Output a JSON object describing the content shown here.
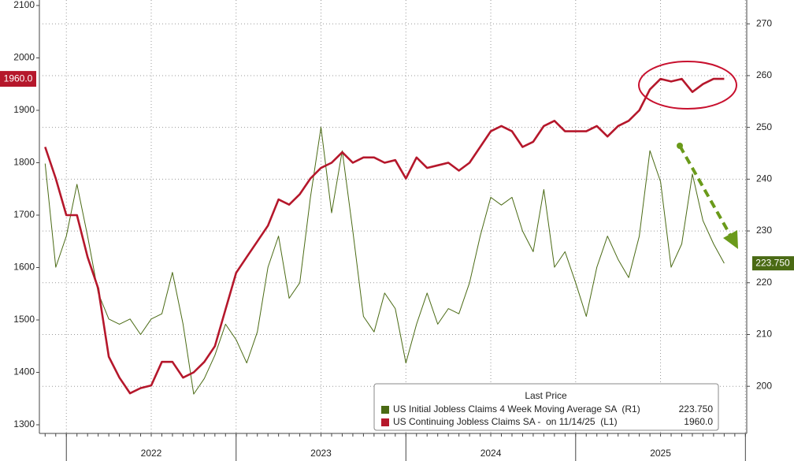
{
  "chart_data": {
    "type": "line",
    "categories": [
      null,
      null,
      null,
      null,
      null,
      null,
      null,
      null,
      null,
      null,
      "2022",
      null,
      null,
      null,
      null,
      null,
      null,
      null,
      null,
      null,
      null,
      null,
      null,
      null,
      null,
      null,
      "2023",
      null,
      null,
      null,
      null,
      null,
      null,
      null,
      null,
      null,
      null,
      null,
      null,
      null,
      null,
      null,
      "2024",
      null,
      null,
      null,
      null,
      null,
      null,
      null,
      null,
      null,
      null,
      null,
      null,
      null,
      null,
      null,
      "2025",
      null,
      null,
      null,
      null,
      null,
      null
    ],
    "series": [
      {
        "name": "US Initial Jobless Claims 4 Week Moving Average SA  (R1)",
        "color": "#4a6a14",
        "axis": "y2",
        "values": [
          243,
          223,
          229,
          239,
          229,
          218,
          213,
          212,
          213,
          210,
          213,
          214,
          222,
          212,
          198.5,
          201.5,
          206,
          212,
          209,
          204.5,
          210.5,
          223,
          229,
          217,
          220,
          236.5,
          250,
          233.5,
          245.5,
          230,
          213.5,
          210.5,
          218,
          215,
          204.5,
          212,
          218,
          212,
          215,
          214,
          220,
          229,
          236.5,
          235,
          236.5,
          230,
          226,
          238,
          223,
          226,
          220,
          213.5,
          223,
          229,
          224.5,
          221,
          229,
          245.5,
          239.5,
          223,
          227.5,
          241,
          232,
          227.5,
          223.75
        ],
        "value_labels": [
          null,
          null,
          null,
          null,
          null,
          null,
          null,
          null,
          null,
          null,
          null,
          null,
          null,
          null,
          null,
          null,
          null,
          null,
          null,
          null,
          null,
          null,
          null,
          null,
          null,
          null,
          null,
          null,
          null,
          null,
          null,
          null,
          null,
          null,
          null,
          null,
          null,
          null,
          null,
          null,
          null,
          null,
          null,
          null,
          null,
          null,
          null,
          null,
          null,
          null,
          null,
          null,
          null,
          null,
          null,
          null,
          null,
          null,
          null,
          null,
          null,
          null,
          null,
          null,
          "223.750"
        ]
      },
      {
        "name": "US Continuing Jobless Claims SA -  on 11/14/25  (L1)",
        "color": "#b5172b",
        "axis": "y",
        "values": [
          1830,
          1770,
          1700,
          1700,
          1620,
          1560,
          1430,
          1390,
          1360,
          1370,
          1375,
          1420,
          1420,
          1390,
          1400,
          1420,
          1450,
          1520,
          1590,
          1620,
          1650,
          1680,
          1730,
          1720,
          1740,
          1770,
          1790,
          1800,
          1820,
          1800,
          1810,
          1810,
          1800,
          1805,
          1770,
          1810,
          1790,
          1795,
          1800,
          1785,
          1800,
          1830,
          1860,
          1870,
          1860,
          1830,
          1840,
          1870,
          1880,
          1860,
          1860,
          1860,
          1870,
          1850,
          1870,
          1880,
          1900,
          1940,
          1960,
          1955,
          1960,
          1935,
          1950,
          1960,
          1960
        ],
        "value_labels": [
          null,
          null,
          null,
          null,
          null,
          null,
          null,
          null,
          null,
          null,
          null,
          null,
          null,
          null,
          null,
          null,
          null,
          null,
          null,
          null,
          null,
          null,
          null,
          null,
          null,
          null,
          null,
          null,
          null,
          null,
          null,
          null,
          null,
          null,
          null,
          null,
          null,
          null,
          null,
          null,
          null,
          null,
          null,
          null,
          null,
          null,
          null,
          null,
          null,
          null,
          null,
          null,
          null,
          null,
          null,
          null,
          null,
          null,
          null,
          null,
          null,
          null,
          null,
          null,
          "1960.0"
        ]
      }
    ],
    "ylim": [
      1283.5,
      2110.5
    ],
    "yticks": [
      1300,
      1400,
      1500,
      1600,
      1700,
      1800,
      1900,
      2000,
      2100
    ],
    "y2lim": [
      190.9,
      274.6
    ],
    "y2ticks": [
      200,
      210,
      220,
      230,
      240,
      250,
      260,
      270
    ],
    "grid": "y2",
    "legend_title": "Last Price"
  }
}
